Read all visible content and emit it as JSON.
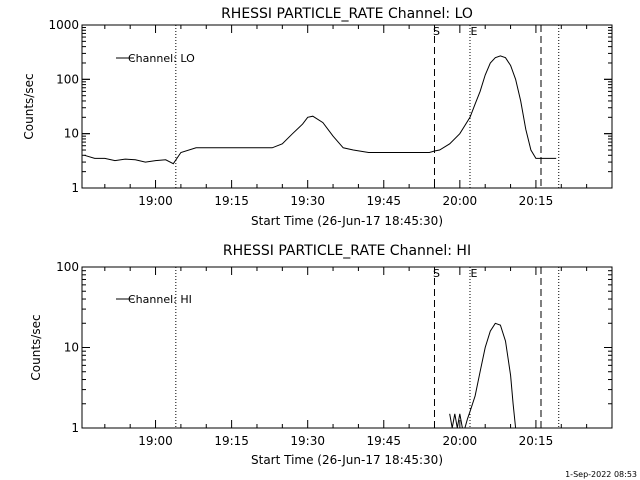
{
  "timestamp": "1-Sep-2022 08:53",
  "chart_data": [
    {
      "type": "line",
      "title": "RHESSI PARTICLE_RATE Channel: LO",
      "xlabel": "Start Time (26-Jun-17 18:45:30)",
      "ylabel": "Counts/sec",
      "y_scale": "log",
      "ylim": [
        1,
        1000
      ],
      "xlim": [
        "18:45:30",
        "20:30:00"
      ],
      "ytick_labels": [
        "1",
        "10",
        "100",
        "1000"
      ],
      "xtick_labels": [
        "19:00",
        "19:15",
        "19:30",
        "19:45",
        "20:00",
        "20:15"
      ],
      "legend": "Channel: LO",
      "legend_position": "top-left",
      "markers": {
        "dotted": [
          "19:04:00",
          "20:02:00",
          "20:19:30"
        ],
        "dashed": [
          "19:55:00",
          "20:16:00"
        ],
        "S": "19:55:00",
        "E": "20:02:00"
      },
      "series": [
        {
          "name": "Channel: LO",
          "x": [
            "18:46:00",
            "18:48:00",
            "18:50:00",
            "18:52:00",
            "18:54:00",
            "18:56:00",
            "18:58:00",
            "19:00:00",
            "19:02:00",
            "19:03:30",
            "19:05:00",
            "19:08:00",
            "19:12:00",
            "19:16:00",
            "19:20:00",
            "19:23:00",
            "19:25:00",
            "19:27:00",
            "19:29:00",
            "19:30:00",
            "19:31:00",
            "19:33:00",
            "19:35:00",
            "19:37:00",
            "19:39:00",
            "19:42:00",
            "19:45:00",
            "19:48:00",
            "19:51:00",
            "19:54:00",
            "19:55:00",
            "19:56:00",
            "19:58:00",
            "20:00:00",
            "20:02:00",
            "20:03:00",
            "20:04:00",
            "20:05:00",
            "20:06:00",
            "20:07:00",
            "20:08:00",
            "20:09:00",
            "20:10:00",
            "20:11:00",
            "20:12:00",
            "20:13:00",
            "20:14:00",
            "20:15:00",
            "20:16:00",
            "20:17:00",
            "20:18:00",
            "20:19:00"
          ],
          "values": [
            4,
            3.5,
            3.5,
            3.2,
            3.4,
            3.3,
            3,
            3.2,
            3.3,
            2.8,
            4.5,
            5.5,
            5.5,
            5.5,
            5.5,
            5.5,
            6.5,
            10,
            15,
            20,
            21,
            16,
            9,
            5.5,
            5,
            4.5,
            4.5,
            4.5,
            4.5,
            4.5,
            4.8,
            5,
            6.5,
            10,
            20,
            35,
            60,
            120,
            200,
            250,
            270,
            250,
            180,
            100,
            40,
            12,
            5,
            3.5,
            3.5,
            3.5,
            3.5,
            3.5
          ]
        }
      ]
    },
    {
      "type": "line",
      "title": "RHESSI PARTICLE_RATE Channel: HI",
      "xlabel": "Start Time (26-Jun-17 18:45:30)",
      "ylabel": "Counts/sec",
      "y_scale": "log",
      "ylim": [
        1,
        100
      ],
      "xlim": [
        "18:45:30",
        "20:30:00"
      ],
      "ytick_labels": [
        "1",
        "10",
        "100"
      ],
      "xtick_labels": [
        "19:00",
        "19:15",
        "19:30",
        "19:45",
        "20:00",
        "20:15"
      ],
      "legend": "Channel: HI",
      "legend_position": "top-left",
      "markers": {
        "dotted": [
          "19:04:00",
          "20:02:00",
          "20:19:30"
        ],
        "dashed": [
          "19:55:00",
          "20:16:00"
        ],
        "S": "19:55:00",
        "E": "20:02:00"
      },
      "series": [
        {
          "name": "Channel: HI",
          "x": [
            "19:58:00",
            "19:58:30",
            "19:59:00",
            "19:59:30",
            "20:00:00",
            "20:00:30",
            "20:01:00",
            "20:01:30",
            "20:02:00",
            "20:03:00",
            "20:04:00",
            "20:05:00",
            "20:06:00",
            "20:07:00",
            "20:08:00",
            "20:09:00",
            "20:10:00",
            "20:10:30",
            "20:11:00"
          ],
          "values": [
            1.5,
            1,
            1.5,
            1,
            1.5,
            1,
            1,
            1.3,
            1.6,
            2.5,
            5,
            10,
            16,
            20,
            19,
            12,
            4.5,
            2,
            1
          ]
        }
      ]
    }
  ]
}
